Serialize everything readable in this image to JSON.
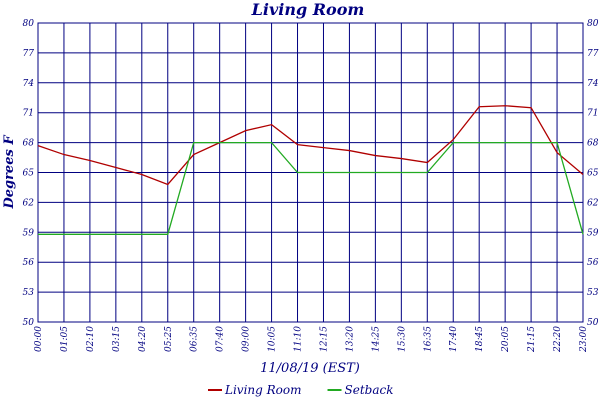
{
  "chart_data": {
    "type": "line",
    "title": "Living Room",
    "y_label": "Degrees F",
    "x_label": "11/08/19 (EST)",
    "categories": [
      "00:00",
      "01:05",
      "02:10",
      "03:15",
      "04:20",
      "05:25",
      "06:35",
      "07:40",
      "09:00",
      "10:05",
      "11:10",
      "12:15",
      "13:20",
      "14:25",
      "15:30",
      "16:35",
      "17:40",
      "18:45",
      "20:05",
      "21:15",
      "22:20",
      "23:00"
    ],
    "series": [
      {
        "name": "Living Room",
        "color": "#b00000",
        "values": [
          67.7,
          66.8,
          66.2,
          65.5,
          64.8,
          63.8,
          66.8,
          68.0,
          69.2,
          69.8,
          67.8,
          67.5,
          67.2,
          66.7,
          66.4,
          66.0,
          68.3,
          71.6,
          71.7,
          71.5,
          67.0,
          64.8
        ]
      },
      {
        "name": "Setback",
        "color": "#22aa22",
        "values": [
          58.8,
          58.8,
          58.8,
          58.8,
          58.8,
          58.8,
          68,
          68,
          68,
          68,
          65,
          65,
          65,
          65,
          65,
          65,
          68,
          68,
          68,
          68,
          68,
          58.8
        ]
      }
    ],
    "ylim": [
      50,
      80
    ],
    "yticks": [
      50,
      53,
      56,
      59,
      62,
      65,
      68,
      71,
      74,
      77,
      80
    ],
    "grid": true,
    "grid_color": "#000080",
    "legend": "bottom"
  }
}
